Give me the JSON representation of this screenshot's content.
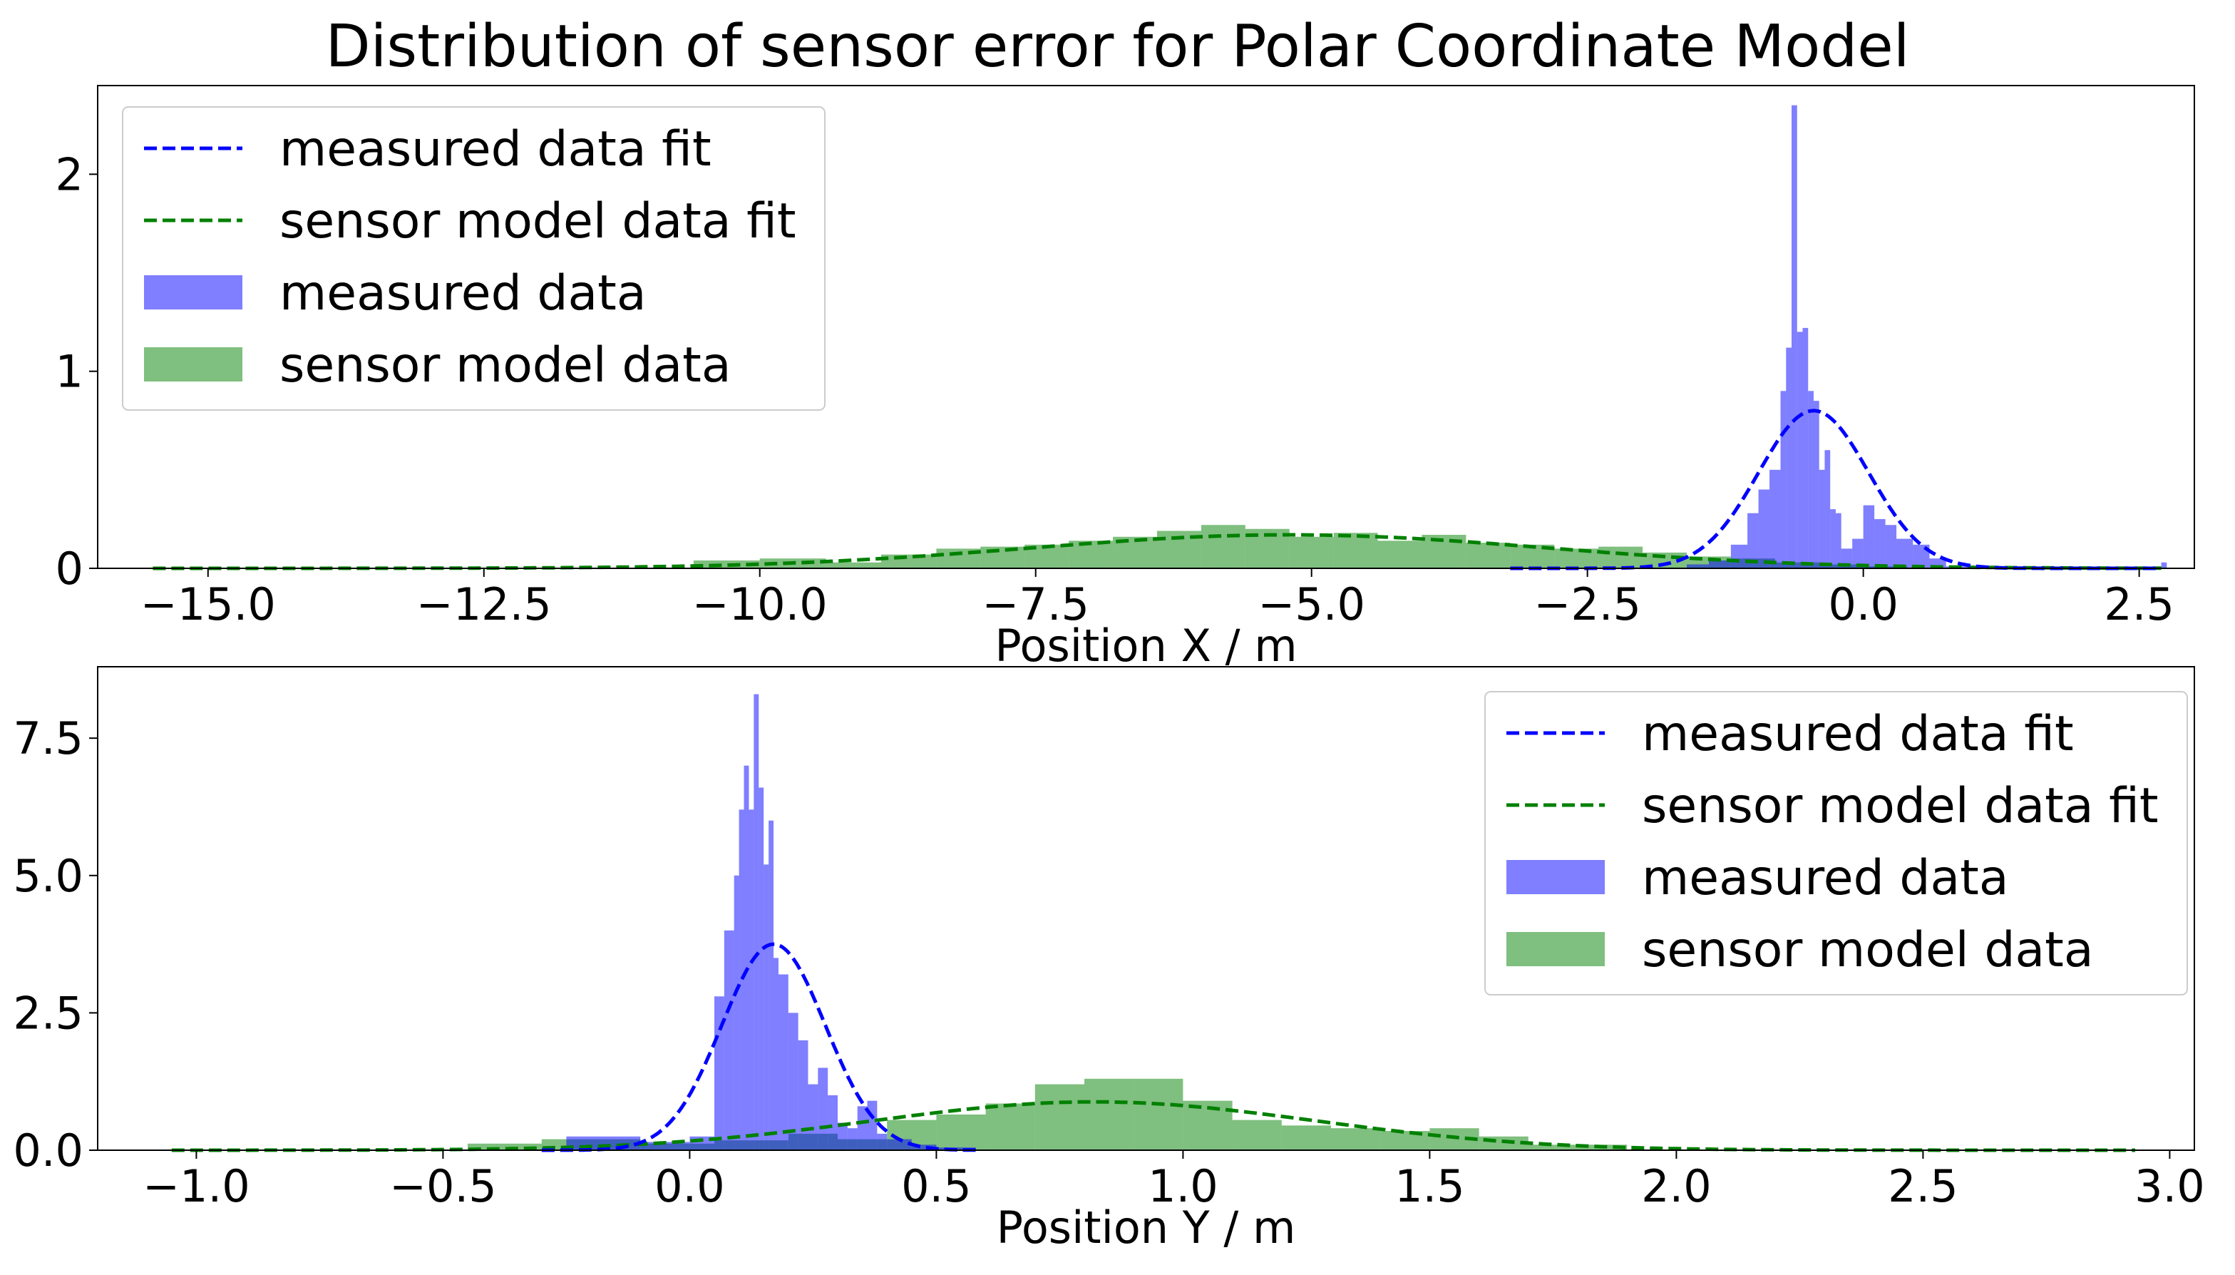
{
  "figure": {
    "title": "Distribution of sensor error for Polar Coordinate Model"
  },
  "colors": {
    "measured": "#0000ff",
    "model": "#008000",
    "measured_fill": "rgba(0,0,255,0.5)",
    "model_fill": "rgba(0,128,0,0.5)"
  },
  "chart_data": [
    {
      "type": "histogram",
      "xlabel": "Position X / m",
      "ylabel": "",
      "xlim": [
        -16.0,
        3.0
      ],
      "ylim": [
        0,
        2.45
      ],
      "xticks": [
        -15.0,
        -12.5,
        -10.0,
        -7.5,
        -5.0,
        -2.5,
        0.0,
        2.5
      ],
      "xtick_labels": [
        "−15.0",
        "−12.5",
        "−10.0",
        "−7.5",
        "−5.0",
        "−2.5",
        "0.0",
        "2.5"
      ],
      "yticks": [
        0,
        1,
        2
      ],
      "ytick_labels": [
        "0",
        "1",
        "2"
      ],
      "legend_position": "upper-left",
      "legend": [
        "measured data fit",
        "sensor model data fit",
        "measured data",
        "sensor model data"
      ],
      "series": [
        {
          "name": "measured data fit",
          "kind": "normal_fit",
          "mu": -0.45,
          "sigma": 0.5,
          "amp": 0.8,
          "x_range": [
            -3.2,
            2.7
          ]
        },
        {
          "name": "sensor model data fit",
          "kind": "normal_fit",
          "mu": -5.2,
          "sigma": 2.35,
          "amp": 0.17,
          "x_range": [
            -15.5,
            2.7
          ]
        },
        {
          "name": "measured data",
          "kind": "histogram",
          "bin_edges": [
            -1.6,
            -1.4,
            -1.2,
            -1.05,
            -0.95,
            -0.85,
            -0.75,
            -0.7,
            -0.65,
            -0.6,
            -0.55,
            -0.5,
            -0.45,
            -0.4,
            -0.35,
            -0.3,
            -0.25,
            -0.2,
            -0.1,
            0.0,
            0.1,
            0.2,
            0.3,
            0.45,
            0.6,
            0.75,
            1.0,
            2.7,
            2.75
          ],
          "counts": [
            0.02,
            0.04,
            0.12,
            0.28,
            0.4,
            0.5,
            0.9,
            1.12,
            2.35,
            1.2,
            1.22,
            0.9,
            0.85,
            0.5,
            0.6,
            0.3,
            0.28,
            0.1,
            0.15,
            0.32,
            0.25,
            0.22,
            0.15,
            0.12,
            0.05,
            0.01,
            0.0,
            0.03
          ]
        },
        {
          "name": "sensor model data",
          "kind": "histogram",
          "bin_edges": [
            -10.6,
            -10.0,
            -9.4,
            -8.9,
            -8.4,
            -8.0,
            -7.6,
            -7.2,
            -6.8,
            -6.4,
            -6.0,
            -5.6,
            -5.2,
            -4.8,
            -4.4,
            -4.0,
            -3.6,
            -3.2,
            -2.8,
            -2.4,
            -2.0,
            -1.6,
            -1.2,
            -0.8,
            -0.4,
            0.0,
            0.4
          ],
          "counts": [
            0.04,
            0.05,
            0.03,
            0.07,
            0.1,
            0.11,
            0.12,
            0.14,
            0.16,
            0.19,
            0.22,
            0.2,
            0.16,
            0.18,
            0.14,
            0.17,
            0.13,
            0.12,
            0.1,
            0.11,
            0.08,
            0.06,
            0.05,
            0.03,
            0.02,
            0.01
          ]
        }
      ]
    },
    {
      "type": "histogram",
      "xlabel": "Position Y / m",
      "ylabel": "",
      "xlim": [
        -1.2,
        3.05
      ],
      "ylim": [
        0,
        8.8
      ],
      "xticks": [
        -1.0,
        -0.5,
        0.0,
        0.5,
        1.0,
        1.5,
        2.0,
        2.5,
        3.0
      ],
      "xtick_labels": [
        "−1.0",
        "−0.5",
        "0.0",
        "0.5",
        "1.0",
        "1.5",
        "2.0",
        "2.5",
        "3.0"
      ],
      "yticks": [
        0.0,
        2.5,
        5.0,
        7.5
      ],
      "ytick_labels": [
        "0.0",
        "2.5",
        "5.0",
        "7.5"
      ],
      "legend_position": "upper-right",
      "legend": [
        "measured data fit",
        "sensor model data fit",
        "measured data",
        "sensor model data"
      ],
      "series": [
        {
          "name": "measured data fit",
          "kind": "normal_fit",
          "mu": 0.17,
          "sigma": 0.105,
          "amp": 3.75,
          "x_range": [
            -0.3,
            0.58
          ]
        },
        {
          "name": "sensor model data fit",
          "kind": "normal_fit",
          "mu": 0.82,
          "sigma": 0.45,
          "amp": 0.88,
          "x_range": [
            -1.05,
            2.93
          ]
        },
        {
          "name": "measured data",
          "kind": "histogram",
          "bin_edges": [
            -0.25,
            -0.1,
            0.0,
            0.05,
            0.07,
            0.09,
            0.1,
            0.11,
            0.12,
            0.13,
            0.14,
            0.15,
            0.16,
            0.17,
            0.18,
            0.2,
            0.22,
            0.24,
            0.26,
            0.28,
            0.3,
            0.32,
            0.34,
            0.36,
            0.38,
            0.4,
            0.45,
            0.5,
            0.58
          ],
          "counts": [
            0.25,
            0.15,
            0.25,
            2.8,
            4.0,
            5.0,
            6.2,
            7.0,
            6.2,
            8.3,
            6.6,
            5.2,
            6.0,
            3.5,
            3.2,
            2.5,
            2.0,
            1.2,
            1.5,
            1.0,
            0.5,
            0.4,
            0.8,
            0.9,
            0.3,
            0.2,
            0.1,
            0.05
          ]
        },
        {
          "name": "sensor model data",
          "kind": "histogram",
          "bin_edges": [
            -0.45,
            -0.3,
            -0.1,
            0.05,
            0.2,
            0.3,
            0.4,
            0.5,
            0.6,
            0.7,
            0.8,
            0.9,
            1.0,
            1.1,
            1.2,
            1.3,
            1.4,
            1.5,
            1.6,
            1.7,
            1.9
          ],
          "counts": [
            0.12,
            0.2,
            0.12,
            0.18,
            0.3,
            0.2,
            0.55,
            0.65,
            0.85,
            1.2,
            1.3,
            1.3,
            0.9,
            0.55,
            0.45,
            0.4,
            0.35,
            0.4,
            0.25,
            0.1
          ]
        }
      ]
    }
  ]
}
